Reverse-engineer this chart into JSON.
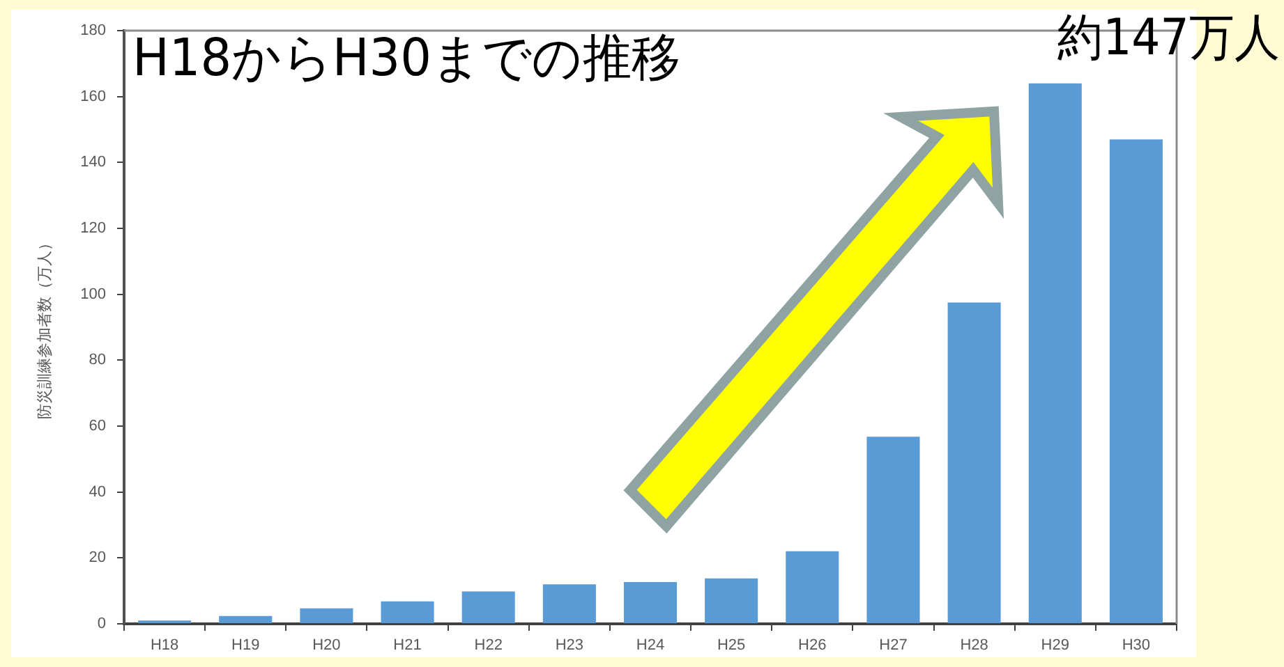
{
  "chart_data": {
    "type": "bar",
    "title": "H18からH30までの推移",
    "ylabel": "防災訓練参加者数（万人）",
    "categories": [
      "H18",
      "H19",
      "H20",
      "H21",
      "H22",
      "H23",
      "H24",
      "H25",
      "H26",
      "H27",
      "H28",
      "H29",
      "H30"
    ],
    "values": [
      1,
      2.4,
      4.7,
      6.8,
      9.8,
      12,
      12.7,
      13.8,
      22,
      56.8,
      97.5,
      164,
      147
    ],
    "color": "#5b9bd5",
    "ylim": [
      0,
      180
    ],
    "yticks": [
      0,
      20,
      40,
      60,
      80,
      100,
      120,
      140,
      160,
      180
    ],
    "grid": false,
    "legend": false,
    "annotations": [
      "約147万人"
    ]
  }
}
